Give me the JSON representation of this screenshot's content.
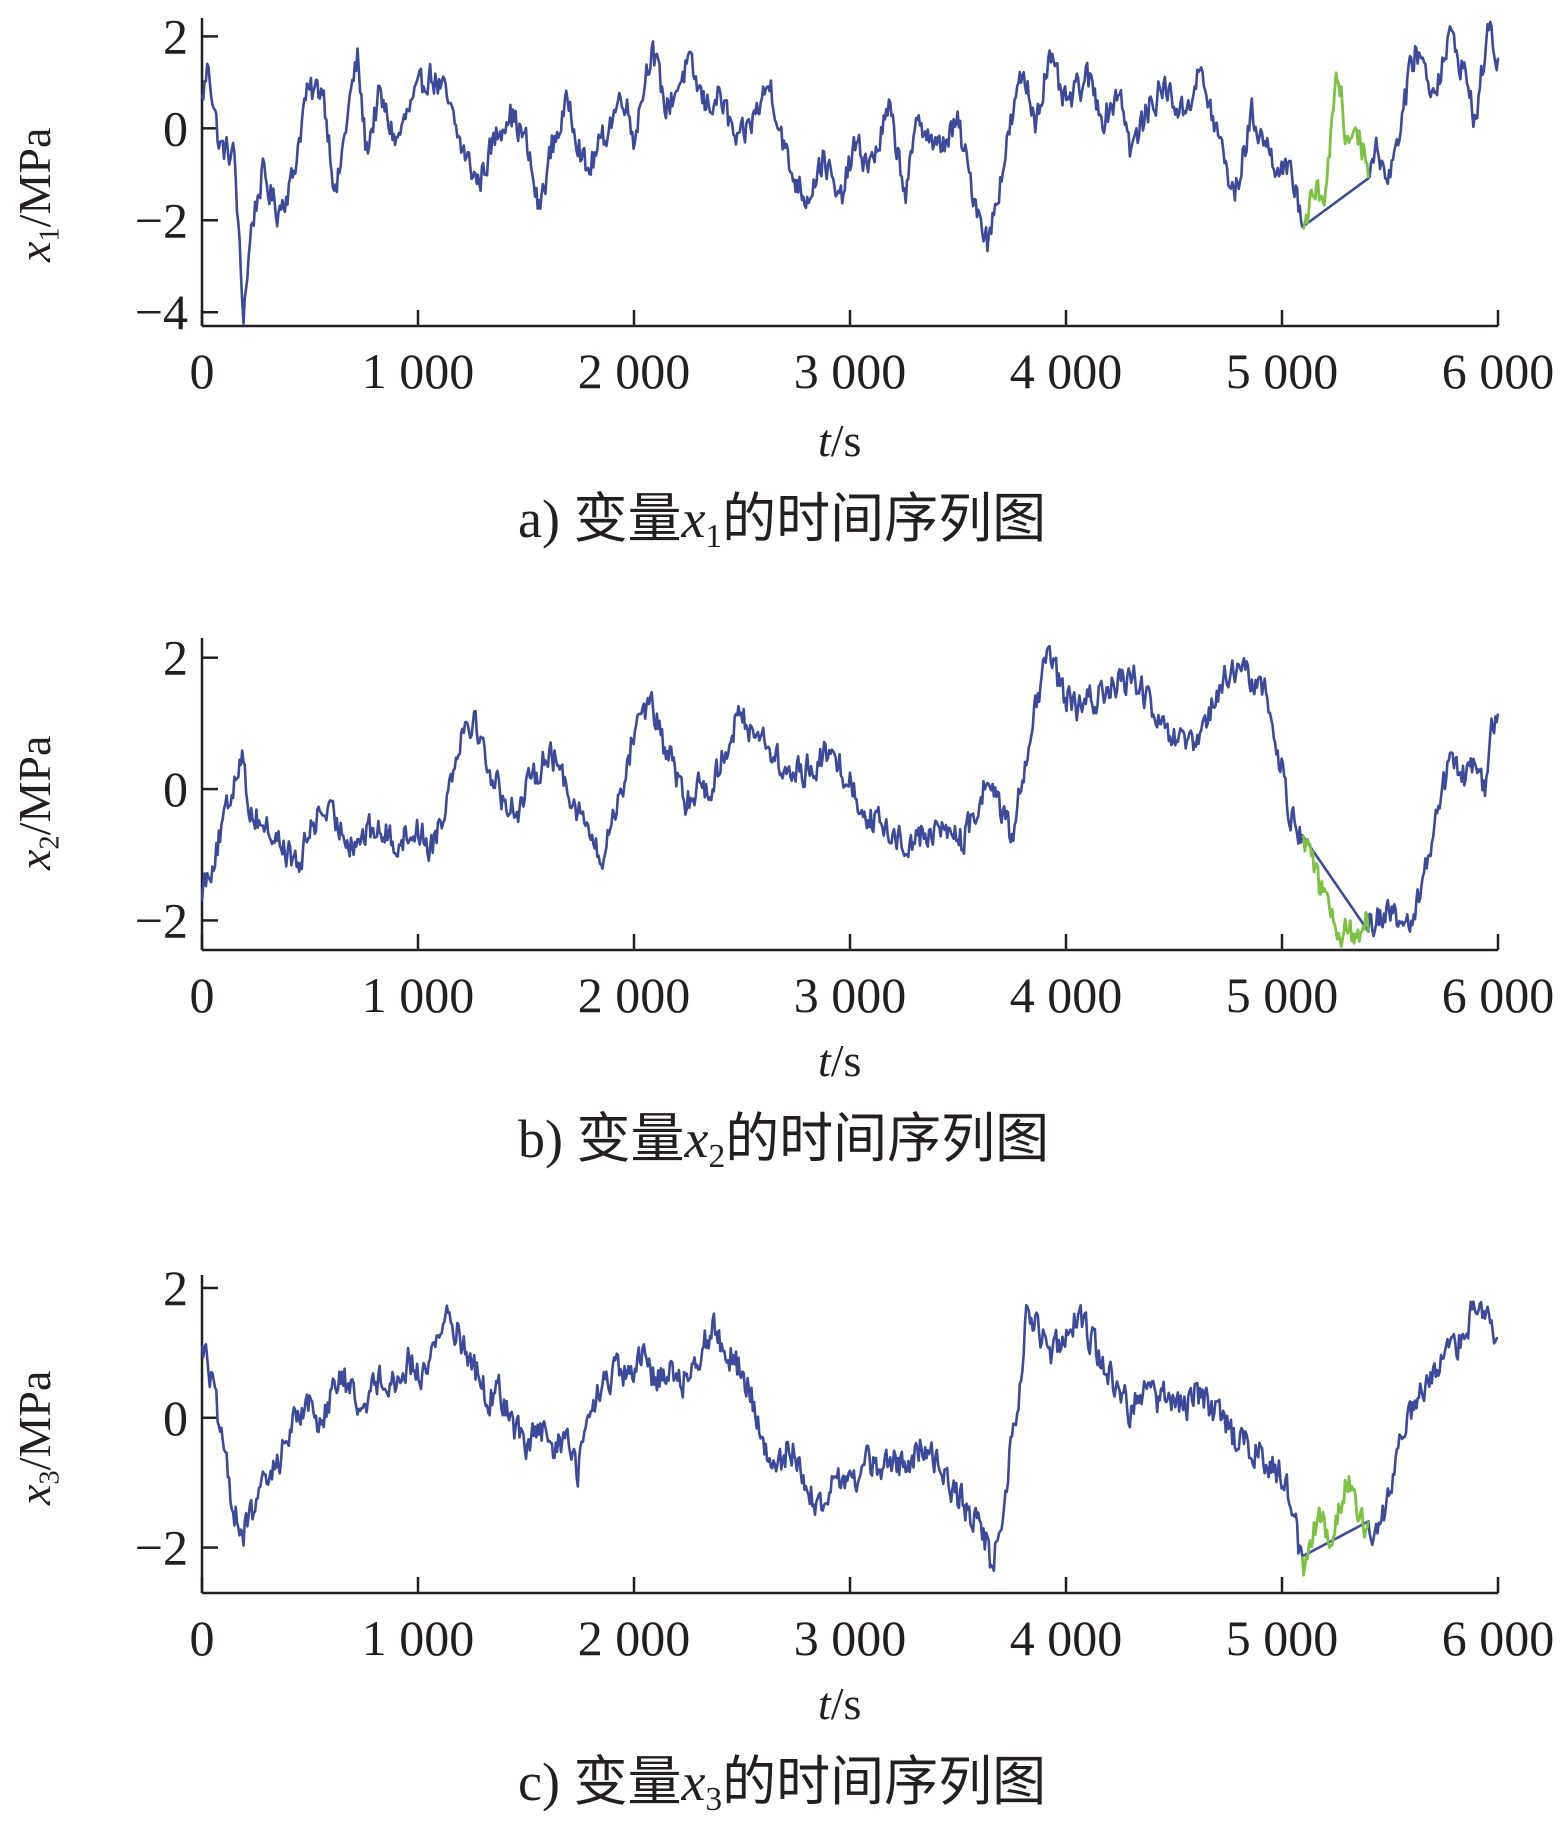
{
  "chart_data": [
    {
      "type": "line",
      "ylabel_var": "x",
      "ylabel_sub": "1",
      "ylabel_unit": "/MPa",
      "xlabel_var": "t",
      "xlabel_unit": "/s",
      "caption_prefix": "a) 变量",
      "caption_var": "x",
      "caption_sub": "1",
      "caption_suffix": "的时间序列图",
      "xlim": [
        0,
        6000
      ],
      "ylim": [
        -4.3,
        2.4
      ],
      "xticks": [
        0,
        1000,
        2000,
        3000,
        4000,
        5000,
        6000
      ],
      "xtick_labels": [
        "0",
        "1 000",
        "2 000",
        "3 000",
        "4 000",
        "5 000",
        "6 000"
      ],
      "yticks": [
        -4,
        -2,
        0,
        2
      ],
      "ytick_labels": [
        "−4",
        "−2",
        "0",
        "2"
      ],
      "highlight_range": [
        5100,
        5400
      ],
      "series_colors": [
        "#3b4a9a",
        "#7cc242"
      ],
      "keypoints": [
        [
          0,
          0.6
        ],
        [
          30,
          1.4
        ],
        [
          80,
          -0.4
        ],
        [
          150,
          -0.6
        ],
        [
          190,
          -4.1
        ],
        [
          230,
          -2.1
        ],
        [
          280,
          -1.0
        ],
        [
          350,
          -1.8
        ],
        [
          420,
          -1.1
        ],
        [
          480,
          0.7
        ],
        [
          560,
          0.9
        ],
        [
          620,
          -1.5
        ],
        [
          680,
          0.5
        ],
        [
          720,
          1.5
        ],
        [
          760,
          -0.5
        ],
        [
          820,
          0.7
        ],
        [
          900,
          -0.3
        ],
        [
          960,
          0.4
        ],
        [
          1050,
          1.2
        ],
        [
          1120,
          0.8
        ],
        [
          1200,
          -0.4
        ],
        [
          1280,
          -1.2
        ],
        [
          1350,
          -0.3
        ],
        [
          1420,
          0.4
        ],
        [
          1500,
          -0.3
        ],
        [
          1560,
          -1.8
        ],
        [
          1620,
          -0.4
        ],
        [
          1700,
          0.6
        ],
        [
          1780,
          -1.0
        ],
        [
          1860,
          -0.2
        ],
        [
          1950,
          0.8
        ],
        [
          2000,
          -0.2
        ],
        [
          2080,
          1.8
        ],
        [
          2150,
          0.4
        ],
        [
          2250,
          1.4
        ],
        [
          2330,
          0.5
        ],
        [
          2400,
          0.7
        ],
        [
          2480,
          -0.4
        ],
        [
          2550,
          0.2
        ],
        [
          2630,
          1.0
        ],
        [
          2720,
          -0.9
        ],
        [
          2800,
          -1.5
        ],
        [
          2880,
          -0.6
        ],
        [
          2950,
          -1.7
        ],
        [
          3020,
          -0.4
        ],
        [
          3100,
          -0.8
        ],
        [
          3180,
          0.4
        ],
        [
          3260,
          -1.4
        ],
        [
          3320,
          0.3
        ],
        [
          3400,
          -0.5
        ],
        [
          3500,
          0.1
        ],
        [
          3560,
          -1.2
        ],
        [
          3640,
          -2.5
        ],
        [
          3700,
          -1.0
        ],
        [
          3750,
          0.2
        ],
        [
          3800,
          1.2
        ],
        [
          3860,
          0.2
        ],
        [
          3920,
          1.5
        ],
        [
          4000,
          0.5
        ],
        [
          4100,
          1.1
        ],
        [
          4180,
          0.2
        ],
        [
          4250,
          0.9
        ],
        [
          4300,
          -0.5
        ],
        [
          4400,
          0.6
        ],
        [
          4460,
          0.9
        ],
        [
          4540,
          0.3
        ],
        [
          4620,
          1.2
        ],
        [
          4700,
          -0.1
        ],
        [
          4780,
          -1.5
        ],
        [
          4860,
          0.3
        ],
        [
          4950,
          -0.6
        ],
        [
          5020,
          -1.0
        ],
        [
          5060,
          -1.2
        ],
        [
          5100,
          -2.1
        ],
        [
          5150,
          -1.4
        ],
        [
          5200,
          -1.4
        ],
        [
          5260,
          1.3
        ],
        [
          5300,
          -0.4
        ],
        [
          5340,
          0.1
        ],
        [
          5400,
          -0.8
        ],
        [
          5440,
          -0.5
        ],
        [
          5500,
          -1.0
        ],
        [
          5560,
          0.4
        ],
        [
          5620,
          1.8
        ],
        [
          5700,
          0.8
        ],
        [
          5780,
          2.0
        ],
        [
          5840,
          1.3
        ],
        [
          5900,
          0.1
        ],
        [
          5950,
          2.2
        ],
        [
          6000,
          1.5
        ]
      ]
    },
    {
      "type": "line",
      "ylabel_var": "x",
      "ylabel_sub": "2",
      "ylabel_unit": "/MPa",
      "xlabel_var": "t",
      "xlabel_unit": "/s",
      "caption_prefix": "b) 变量",
      "caption_var": "x",
      "caption_sub": "2",
      "caption_suffix": "的时间序列图",
      "xlim": [
        0,
        6000
      ],
      "ylim": [
        -2.45,
        2.3
      ],
      "xticks": [
        0,
        1000,
        2000,
        3000,
        4000,
        5000,
        6000
      ],
      "xtick_labels": [
        "0",
        "1 000",
        "2 000",
        "3 000",
        "4 000",
        "5 000",
        "6 000"
      ],
      "yticks": [
        -2,
        0,
        2
      ],
      "ytick_labels": [
        "−2",
        "0",
        "2"
      ],
      "highlight_range": [
        5100,
        5400
      ],
      "series_colors": [
        "#3b4a9a",
        "#7cc242"
      ],
      "keypoints": [
        [
          0,
          -1.5
        ],
        [
          60,
          -1.0
        ],
        [
          120,
          -0.3
        ],
        [
          180,
          0.6
        ],
        [
          220,
          -0.3
        ],
        [
          300,
          -0.6
        ],
        [
          380,
          -0.9
        ],
        [
          450,
          -1.2
        ],
        [
          500,
          -0.6
        ],
        [
          560,
          -0.3
        ],
        [
          640,
          -0.6
        ],
        [
          700,
          -0.8
        ],
        [
          800,
          -0.6
        ],
        [
          900,
          -0.8
        ],
        [
          1000,
          -0.6
        ],
        [
          1060,
          -0.9
        ],
        [
          1120,
          -0.3
        ],
        [
          1200,
          0.9
        ],
        [
          1260,
          1.1
        ],
        [
          1320,
          0.4
        ],
        [
          1400,
          -0.2
        ],
        [
          1460,
          -0.3
        ],
        [
          1540,
          0.2
        ],
        [
          1600,
          0.6
        ],
        [
          1660,
          0.3
        ],
        [
          1740,
          -0.3
        ],
        [
          1800,
          -0.7
        ],
        [
          1850,
          -1.2
        ],
        [
          1900,
          -0.4
        ],
        [
          1960,
          0.2
        ],
        [
          2020,
          1.2
        ],
        [
          2080,
          1.3
        ],
        [
          2130,
          0.7
        ],
        [
          2180,
          0.4
        ],
        [
          2240,
          -0.3
        ],
        [
          2300,
          0.1
        ],
        [
          2360,
          0.0
        ],
        [
          2420,
          0.6
        ],
        [
          2480,
          1.1
        ],
        [
          2560,
          0.9
        ],
        [
          2620,
          0.7
        ],
        [
          2700,
          0.2
        ],
        [
          2800,
          0.3
        ],
        [
          2880,
          0.5
        ],
        [
          2950,
          0.4
        ],
        [
          3000,
          0.1
        ],
        [
          3060,
          -0.3
        ],
        [
          3150,
          -0.6
        ],
        [
          3250,
          -0.8
        ],
        [
          3350,
          -0.7
        ],
        [
          3450,
          -0.6
        ],
        [
          3520,
          -0.8
        ],
        [
          3580,
          -0.4
        ],
        [
          3640,
          0.2
        ],
        [
          3700,
          -0.3
        ],
        [
          3750,
          -0.8
        ],
        [
          3800,
          0.3
        ],
        [
          3860,
          1.2
        ],
        [
          3920,
          2.1
        ],
        [
          3980,
          1.5
        ],
        [
          4050,
          1.2
        ],
        [
          4140,
          1.4
        ],
        [
          4240,
          1.6
        ],
        [
          4320,
          1.7
        ],
        [
          4380,
          1.3
        ],
        [
          4440,
          0.9
        ],
        [
          4520,
          0.7
        ],
        [
          4600,
          0.6
        ],
        [
          4660,
          1.1
        ],
        [
          4720,
          1.6
        ],
        [
          4780,
          1.8
        ],
        [
          4860,
          1.7
        ],
        [
          4920,
          1.5
        ],
        [
          4980,
          0.6
        ],
        [
          5040,
          -0.4
        ],
        [
          5100,
          -0.7
        ],
        [
          5160,
          -1.3
        ],
        [
          5220,
          -2.0
        ],
        [
          5300,
          -2.2
        ],
        [
          5360,
          -2.2
        ],
        [
          5400,
          -2.0
        ],
        [
          5460,
          -1.9
        ],
        [
          5540,
          -2.0
        ],
        [
          5600,
          -2.2
        ],
        [
          5660,
          -1.2
        ],
        [
          5720,
          -0.3
        ],
        [
          5780,
          0.4
        ],
        [
          5840,
          0.2
        ],
        [
          5900,
          0.3
        ],
        [
          5940,
          0.0
        ],
        [
          5970,
          0.9
        ],
        [
          6000,
          1.0
        ]
      ]
    },
    {
      "type": "line",
      "ylabel_var": "x",
      "ylabel_sub": "3",
      "ylabel_unit": "/MPa",
      "xlabel_var": "t",
      "xlabel_unit": "/s",
      "caption_prefix": "c) 变量",
      "caption_var": "x",
      "caption_sub": "3",
      "caption_suffix": "的时间序列图",
      "xlim": [
        0,
        6000
      ],
      "ylim": [
        -2.7,
        2.2
      ],
      "xticks": [
        0,
        1000,
        2000,
        3000,
        4000,
        5000,
        6000
      ],
      "xtick_labels": [
        "0",
        "1 000",
        "2 000",
        "3 000",
        "4 000",
        "5 000",
        "6 000"
      ],
      "yticks": [
        -2,
        0,
        2
      ],
      "ytick_labels": [
        "−2",
        "0",
        "2"
      ],
      "highlight_range": [
        5100,
        5400
      ],
      "series_colors": [
        "#3b4a9a",
        "#7cc242"
      ],
      "keypoints": [
        [
          0,
          1.2
        ],
        [
          50,
          0.5
        ],
        [
          100,
          -0.6
        ],
        [
          150,
          -1.4
        ],
        [
          190,
          -1.8
        ],
        [
          240,
          -1.4
        ],
        [
          300,
          -1.0
        ],
        [
          360,
          -0.6
        ],
        [
          420,
          -0.1
        ],
        [
          480,
          0.3
        ],
        [
          540,
          -0.1
        ],
        [
          600,
          0.4
        ],
        [
          660,
          0.6
        ],
        [
          720,
          0.2
        ],
        [
          780,
          0.4
        ],
        [
          850,
          0.7
        ],
        [
          900,
          0.5
        ],
        [
          960,
          0.9
        ],
        [
          1020,
          0.6
        ],
        [
          1080,
          1.2
        ],
        [
          1140,
          1.6
        ],
        [
          1200,
          1.2
        ],
        [
          1260,
          0.8
        ],
        [
          1320,
          0.3
        ],
        [
          1380,
          0.4
        ],
        [
          1440,
          -0.1
        ],
        [
          1500,
          -0.4
        ],
        [
          1560,
          -0.2
        ],
        [
          1620,
          -0.5
        ],
        [
          1680,
          -0.3
        ],
        [
          1740,
          -0.8
        ],
        [
          1800,
          0.1
        ],
        [
          1860,
          0.5
        ],
        [
          1920,
          0.7
        ],
        [
          1980,
          0.6
        ],
        [
          2040,
          0.9
        ],
        [
          2100,
          0.6
        ],
        [
          2160,
          0.8
        ],
        [
          2220,
          0.5
        ],
        [
          2300,
          1.0
        ],
        [
          2360,
          1.4
        ],
        [
          2420,
          1.1
        ],
        [
          2480,
          0.8
        ],
        [
          2540,
          0.4
        ],
        [
          2600,
          -0.5
        ],
        [
          2660,
          -0.9
        ],
        [
          2720,
          -0.4
        ],
        [
          2780,
          -0.8
        ],
        [
          2840,
          -1.4
        ],
        [
          2900,
          -1.2
        ],
        [
          2960,
          -0.9
        ],
        [
          3020,
          -1.0
        ],
        [
          3080,
          -0.6
        ],
        [
          3140,
          -0.9
        ],
        [
          3200,
          -0.6
        ],
        [
          3260,
          -0.8
        ],
        [
          3320,
          -0.5
        ],
        [
          3380,
          -0.5
        ],
        [
          3440,
          -0.9
        ],
        [
          3500,
          -1.2
        ],
        [
          3560,
          -1.5
        ],
        [
          3620,
          -1.8
        ],
        [
          3660,
          -2.3
        ],
        [
          3700,
          -1.6
        ],
        [
          3740,
          -0.6
        ],
        [
          3780,
          0.4
        ],
        [
          3820,
          1.6
        ],
        [
          3880,
          1.3
        ],
        [
          3940,
          1.0
        ],
        [
          4000,
          1.4
        ],
        [
          4060,
          1.6
        ],
        [
          4120,
          1.2
        ],
        [
          4180,
          0.8
        ],
        [
          4240,
          0.5
        ],
        [
          4300,
          0.1
        ],
        [
          4360,
          0.5
        ],
        [
          4420,
          0.2
        ],
        [
          4480,
          0.4
        ],
        [
          4540,
          0.1
        ],
        [
          4600,
          0.4
        ],
        [
          4660,
          0.2
        ],
        [
          4720,
          0.0
        ],
        [
          4780,
          -0.3
        ],
        [
          4840,
          -0.4
        ],
        [
          4900,
          -0.6
        ],
        [
          4960,
          -0.8
        ],
        [
          5020,
          -1.0
        ],
        [
          5060,
          -1.6
        ],
        [
          5100,
          -2.5
        ],
        [
          5140,
          -1.8
        ],
        [
          5180,
          -1.6
        ],
        [
          5220,
          -1.8
        ],
        [
          5260,
          -1.4
        ],
        [
          5300,
          -0.9
        ],
        [
          5340,
          -1.4
        ],
        [
          5380,
          -1.7
        ],
        [
          5420,
          -2.0
        ],
        [
          5460,
          -1.6
        ],
        [
          5520,
          -0.8
        ],
        [
          5580,
          -0.1
        ],
        [
          5640,
          0.3
        ],
        [
          5700,
          0.6
        ],
        [
          5760,
          0.9
        ],
        [
          5820,
          1.2
        ],
        [
          5880,
          1.6
        ],
        [
          5940,
          1.7
        ],
        [
          6000,
          1.0
        ]
      ]
    }
  ]
}
